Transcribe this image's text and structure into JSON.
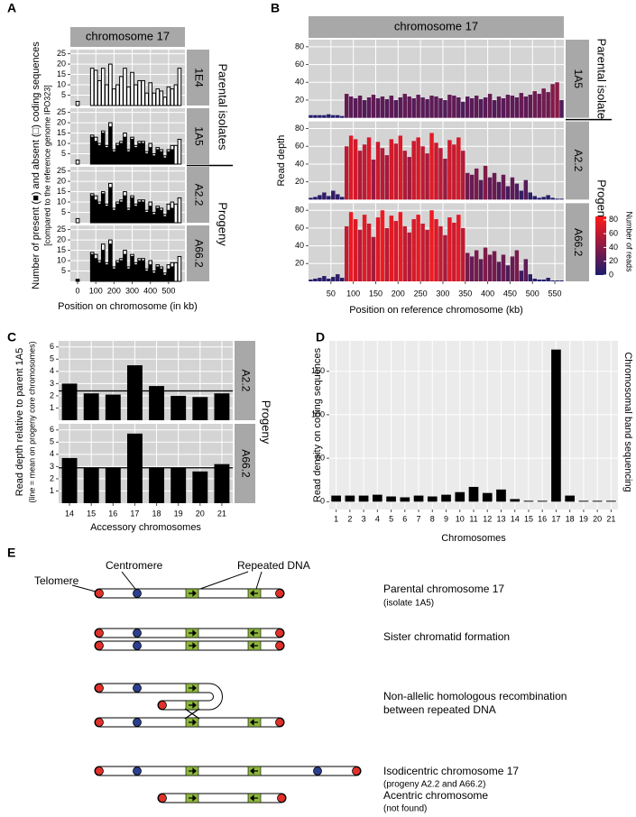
{
  "chart_data": [
    {
      "type": "bar",
      "panel_label": "A",
      "strip_title": "chromosome 17",
      "y_label": "Number of present (■) and absent (□) coding sequences",
      "y_sublabel": "[compared to the reference genome IPO323]",
      "x_label": "Position on chromosome (in kb)",
      "x": [
        0,
        80,
        100,
        120,
        140,
        160,
        180,
        200,
        220,
        240,
        260,
        280,
        300,
        320,
        340,
        360,
        380,
        400,
        420,
        440,
        460,
        480,
        500,
        520,
        540,
        560
      ],
      "xlim": [
        -40,
        590
      ],
      "xticks": [
        0,
        100,
        200,
        300,
        400,
        500
      ],
      "ylim": [
        0,
        27
      ],
      "yticks": [
        5,
        10,
        15,
        20,
        25
      ],
      "grid": true,
      "background": "#d4d4d4",
      "outline": "#000000",
      "groups": [
        {
          "label": "Parental isolates",
          "facets": [
            {
              "label": "1E4",
              "series": [
                {
                  "color": "#000000",
                  "values": [
                    0,
                    0,
                    0,
                    0,
                    0,
                    0,
                    0,
                    0,
                    0,
                    0,
                    0,
                    0,
                    0,
                    0,
                    0,
                    0,
                    0,
                    0,
                    0,
                    0,
                    0,
                    0,
                    0,
                    0,
                    0,
                    0
                  ]
                },
                {
                  "color": "#ffffff",
                  "values": [
                    2,
                    18,
                    17,
                    12,
                    18,
                    10,
                    20,
                    8,
                    10,
                    14,
                    18,
                    9,
                    16,
                    10,
                    12,
                    12,
                    6,
                    11,
                    6,
                    8,
                    7,
                    4,
                    9,
                    8,
                    10,
                    18
                  ]
                }
              ]
            },
            {
              "label": "1A5",
              "series": [
                {
                  "color": "#000000",
                  "values": [
                    0,
                    13,
                    11,
                    9,
                    15,
                    8,
                    18,
                    6,
                    9,
                    10,
                    13,
                    6,
                    12,
                    8,
                    10,
                    10,
                    5,
                    8,
                    4,
                    7,
                    6,
                    3,
                    6,
                    7,
                    0,
                    0
                  ]
                },
                {
                  "color": "#ffffff",
                  "values": [
                    2,
                    1,
                    2,
                    1,
                    1,
                    1,
                    2,
                    1,
                    1,
                    1,
                    2,
                    1,
                    1,
                    1,
                    1,
                    1,
                    1,
                    2,
                    1,
                    1,
                    1,
                    1,
                    1,
                    2,
                    9,
                    12
                  ]
                }
              ]
            }
          ]
        },
        {
          "label": "Progeny",
          "facets": [
            {
              "label": "A2.2",
              "series": [
                {
                  "color": "#000000",
                  "values": [
                    0,
                    13,
                    11,
                    9,
                    14,
                    8,
                    17,
                    6,
                    9,
                    10,
                    13,
                    6,
                    12,
                    8,
                    10,
                    10,
                    5,
                    8,
                    4,
                    7,
                    6,
                    3,
                    6,
                    7,
                    0,
                    0
                  ]
                },
                {
                  "color": "#ffffff",
                  "values": [
                    2,
                    1,
                    2,
                    1,
                    1,
                    1,
                    2,
                    1,
                    1,
                    1,
                    2,
                    1,
                    1,
                    1,
                    1,
                    1,
                    1,
                    2,
                    1,
                    1,
                    1,
                    1,
                    3,
                    3,
                    9,
                    12
                  ]
                }
              ]
            },
            {
              "label": "A66.2",
              "series": [
                {
                  "color": "#000000",
                  "values": [
                    1,
                    13,
                    11,
                    9,
                    15,
                    8,
                    18,
                    6,
                    9,
                    10,
                    13,
                    6,
                    12,
                    8,
                    10,
                    10,
                    5,
                    8,
                    4,
                    7,
                    6,
                    3,
                    6,
                    7,
                    0,
                    0
                  ]
                },
                {
                  "color": "#ffffff",
                  "values": [
                    0,
                    1,
                    2,
                    1,
                    3,
                    1,
                    2,
                    1,
                    1,
                    1,
                    2,
                    1,
                    1,
                    1,
                    1,
                    1,
                    1,
                    2,
                    1,
                    1,
                    1,
                    1,
                    2,
                    2,
                    9,
                    12
                  ]
                }
              ]
            }
          ]
        }
      ]
    },
    {
      "type": "bar",
      "panel_label": "B",
      "strip_title": "chromosome 17",
      "y_label": "Read depth",
      "x_label": "Position on reference chromosome (kb)",
      "x": [
        5,
        15,
        25,
        35,
        45,
        55,
        65,
        75,
        85,
        95,
        105,
        115,
        125,
        135,
        145,
        155,
        165,
        175,
        185,
        195,
        205,
        215,
        225,
        235,
        245,
        255,
        265,
        275,
        285,
        295,
        305,
        315,
        325,
        335,
        345,
        355,
        365,
        375,
        385,
        395,
        405,
        415,
        425,
        435,
        445,
        455,
        465,
        475,
        485,
        495,
        505,
        515,
        525,
        535,
        545,
        555,
        565
      ],
      "xlim": [
        0,
        570
      ],
      "xticks": [
        50,
        100,
        150,
        200,
        250,
        300,
        350,
        400,
        450,
        500,
        550
      ],
      "ylim": [
        0,
        88
      ],
      "yticks": [
        20,
        40,
        60,
        80
      ],
      "grid": true,
      "background": "#d4d4d4",
      "colorscale": {
        "title": "Number of reads",
        "low": "#1c1c6e",
        "high": "#ff1a1a",
        "lim": [
          0,
          85
        ],
        "ticks": [
          0,
          20,
          40,
          60,
          80
        ]
      },
      "groups": [
        {
          "label": "Parental isolate",
          "facets": [
            {
              "label": "1A5",
              "values": [
                3,
                3,
                3,
                3,
                4,
                3,
                3,
                2,
                27,
                24,
                22,
                25,
                20,
                23,
                26,
                22,
                24,
                21,
                25,
                20,
                23,
                27,
                24,
                22,
                26,
                23,
                21,
                25,
                24,
                22,
                20,
                26,
                25,
                23,
                18,
                24,
                22,
                25,
                21,
                23,
                27,
                20,
                24,
                22,
                26,
                25,
                23,
                28,
                24,
                26,
                30,
                27,
                33,
                29,
                38,
                40,
                20
              ]
            }
          ]
        },
        {
          "label": "Progeny",
          "facets": [
            {
              "label": "A2.2",
              "values": [
                2,
                3,
                5,
                8,
                4,
                10,
                6,
                3,
                60,
                72,
                68,
                55,
                62,
                70,
                45,
                65,
                58,
                50,
                68,
                63,
                72,
                55,
                48,
                66,
                70,
                60,
                52,
                75,
                64,
                58,
                46,
                67,
                62,
                70,
                55,
                30,
                28,
                35,
                22,
                38,
                25,
                30,
                20,
                28,
                15,
                25,
                18,
                10,
                22,
                8,
                4,
                2,
                3,
                5,
                2,
                1,
                1
              ]
            },
            {
              "label": "A66.2",
              "values": [
                2,
                3,
                4,
                6,
                3,
                5,
                8,
                4,
                62,
                78,
                70,
                58,
                75,
                65,
                50,
                72,
                80,
                60,
                74,
                68,
                78,
                62,
                55,
                70,
                75,
                65,
                58,
                80,
                70,
                62,
                52,
                72,
                66,
                75,
                60,
                32,
                28,
                35,
                25,
                38,
                30,
                34,
                22,
                30,
                18,
                28,
                35,
                12,
                25,
                8,
                3,
                2,
                2,
                4,
                1,
                1,
                1
              ]
            }
          ]
        }
      ]
    },
    {
      "type": "bar",
      "panel_label": "C",
      "y_label": "Read depth relative to parent 1A5",
      "y_sublabel": "(line = mean on progeny core chromosomes)",
      "x_label": "Accessory chromosomes",
      "categories": [
        "14",
        "15",
        "16",
        "17",
        "18",
        "19",
        "20",
        "21"
      ],
      "ylim": [
        0,
        6.5
      ],
      "yticks": [
        1,
        2,
        3,
        4,
        5,
        6
      ],
      "grid": true,
      "background": "#d4d4d4",
      "color": "#000000",
      "groups": [
        {
          "label": "Progeny",
          "facets": [
            {
              "label": "A2.2",
              "values": [
                3.0,
                2.2,
                2.1,
                4.5,
                2.8,
                2.0,
                1.9,
                2.2
              ],
              "mean": 2.4
            },
            {
              "label": "A66.2",
              "values": [
                3.7,
                2.9,
                2.9,
                5.7,
                2.9,
                2.9,
                2.6,
                3.2
              ],
              "mean": 2.9
            }
          ]
        }
      ]
    },
    {
      "type": "bar",
      "panel_label": "D",
      "y_label": "Read density on coding sequences",
      "x_label": "Chromosomes",
      "side_label": "Chromosomal band sequencing",
      "categories": [
        "1",
        "2",
        "3",
        "4",
        "5",
        "6",
        "7",
        "8",
        "9",
        "10",
        "11",
        "12",
        "13",
        "14",
        "15",
        "16",
        "17",
        "18",
        "19",
        "20",
        "21"
      ],
      "values": [
        7,
        7,
        7,
        8,
        6,
        5,
        7,
        6,
        8,
        11,
        17,
        10,
        14,
        3,
        1,
        1,
        175,
        7,
        1,
        1,
        1
      ],
      "ylim": [
        -9,
        185
      ],
      "yticks": [
        0,
        50,
        100,
        150
      ],
      "grid": true,
      "background": "#ebebeb",
      "color": "#000000"
    }
  ],
  "diagram": {
    "panel_label": "E",
    "labels": [
      "Telomere",
      "Centromere",
      "Repeated DNA"
    ],
    "steps": [
      {
        "lines": [
          "Parental chromosome 17"
        ],
        "note": "(isolate 1A5)"
      },
      {
        "lines": [
          "Sister chromatid formation"
        ]
      },
      {
        "lines": [
          "Non-allelic homologous recombination",
          "between repeated DNA"
        ]
      },
      {
        "lines": [
          "Isodicentric chromosome 17"
        ],
        "note": "(progeny A2.2 and A66.2)"
      },
      {
        "lines": [
          "Acentric chromosome"
        ],
        "note": "(not found)"
      }
    ]
  }
}
